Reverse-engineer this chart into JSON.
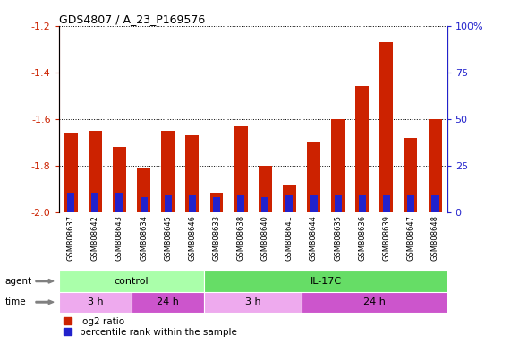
{
  "title": "GDS4807 / A_23_P169576",
  "samples": [
    "GSM808637",
    "GSM808642",
    "GSM808643",
    "GSM808634",
    "GSM808645",
    "GSM808646",
    "GSM808633",
    "GSM808638",
    "GSM808640",
    "GSM808641",
    "GSM808644",
    "GSM808635",
    "GSM808636",
    "GSM808639",
    "GSM808647",
    "GSM808648"
  ],
  "log2_values": [
    -1.66,
    -1.65,
    -1.72,
    -1.81,
    -1.65,
    -1.67,
    -1.92,
    -1.63,
    -1.8,
    -1.88,
    -1.7,
    -1.6,
    -1.46,
    -1.27,
    -1.68,
    -1.6
  ],
  "percentile_values": [
    10,
    10,
    10,
    8,
    9,
    9,
    8,
    9,
    8,
    9,
    9,
    9,
    9,
    9,
    9,
    9
  ],
  "ylim_left": [
    -2.0,
    -1.2
  ],
  "ylim_right": [
    0,
    100
  ],
  "yticks_left": [
    -2.0,
    -1.8,
    -1.6,
    -1.4,
    -1.2
  ],
  "yticks_right": [
    0,
    25,
    50,
    75,
    100
  ],
  "ytick_right_labels": [
    "0",
    "25",
    "50",
    "75",
    "100%"
  ],
  "bar_color": "#cc2200",
  "percentile_color": "#2222cc",
  "bar_width": 0.55,
  "percentile_bar_width": 0.3,
  "grid_color": "#000000",
  "agent_groups": [
    {
      "label": "control",
      "start": 0,
      "end": 6,
      "color": "#aaffaa"
    },
    {
      "label": "IL-17C",
      "start": 6,
      "end": 16,
      "color": "#66dd66"
    }
  ],
  "time_groups": [
    {
      "label": "3 h",
      "start": 0,
      "end": 3,
      "color": "#eeaaee"
    },
    {
      "label": "24 h",
      "start": 3,
      "end": 6,
      "color": "#cc55cc"
    },
    {
      "label": "3 h",
      "start": 6,
      "end": 10,
      "color": "#eeaaee"
    },
    {
      "label": "24 h",
      "start": 10,
      "end": 16,
      "color": "#cc55cc"
    }
  ],
  "agent_label": "agent",
  "time_label": "time",
  "legend_red": "log2 ratio",
  "legend_blue": "percentile rank within the sample",
  "bg_color": "#ffffff",
  "plot_bg_color": "#ffffff",
  "tick_label_color_left": "#cc2200",
  "tick_label_color_right": "#2222cc",
  "title_color": "#000000",
  "xticklabel_bg": "#cccccc",
  "sample_label_fontsize": 6.0,
  "bar_bottom": -2.0
}
